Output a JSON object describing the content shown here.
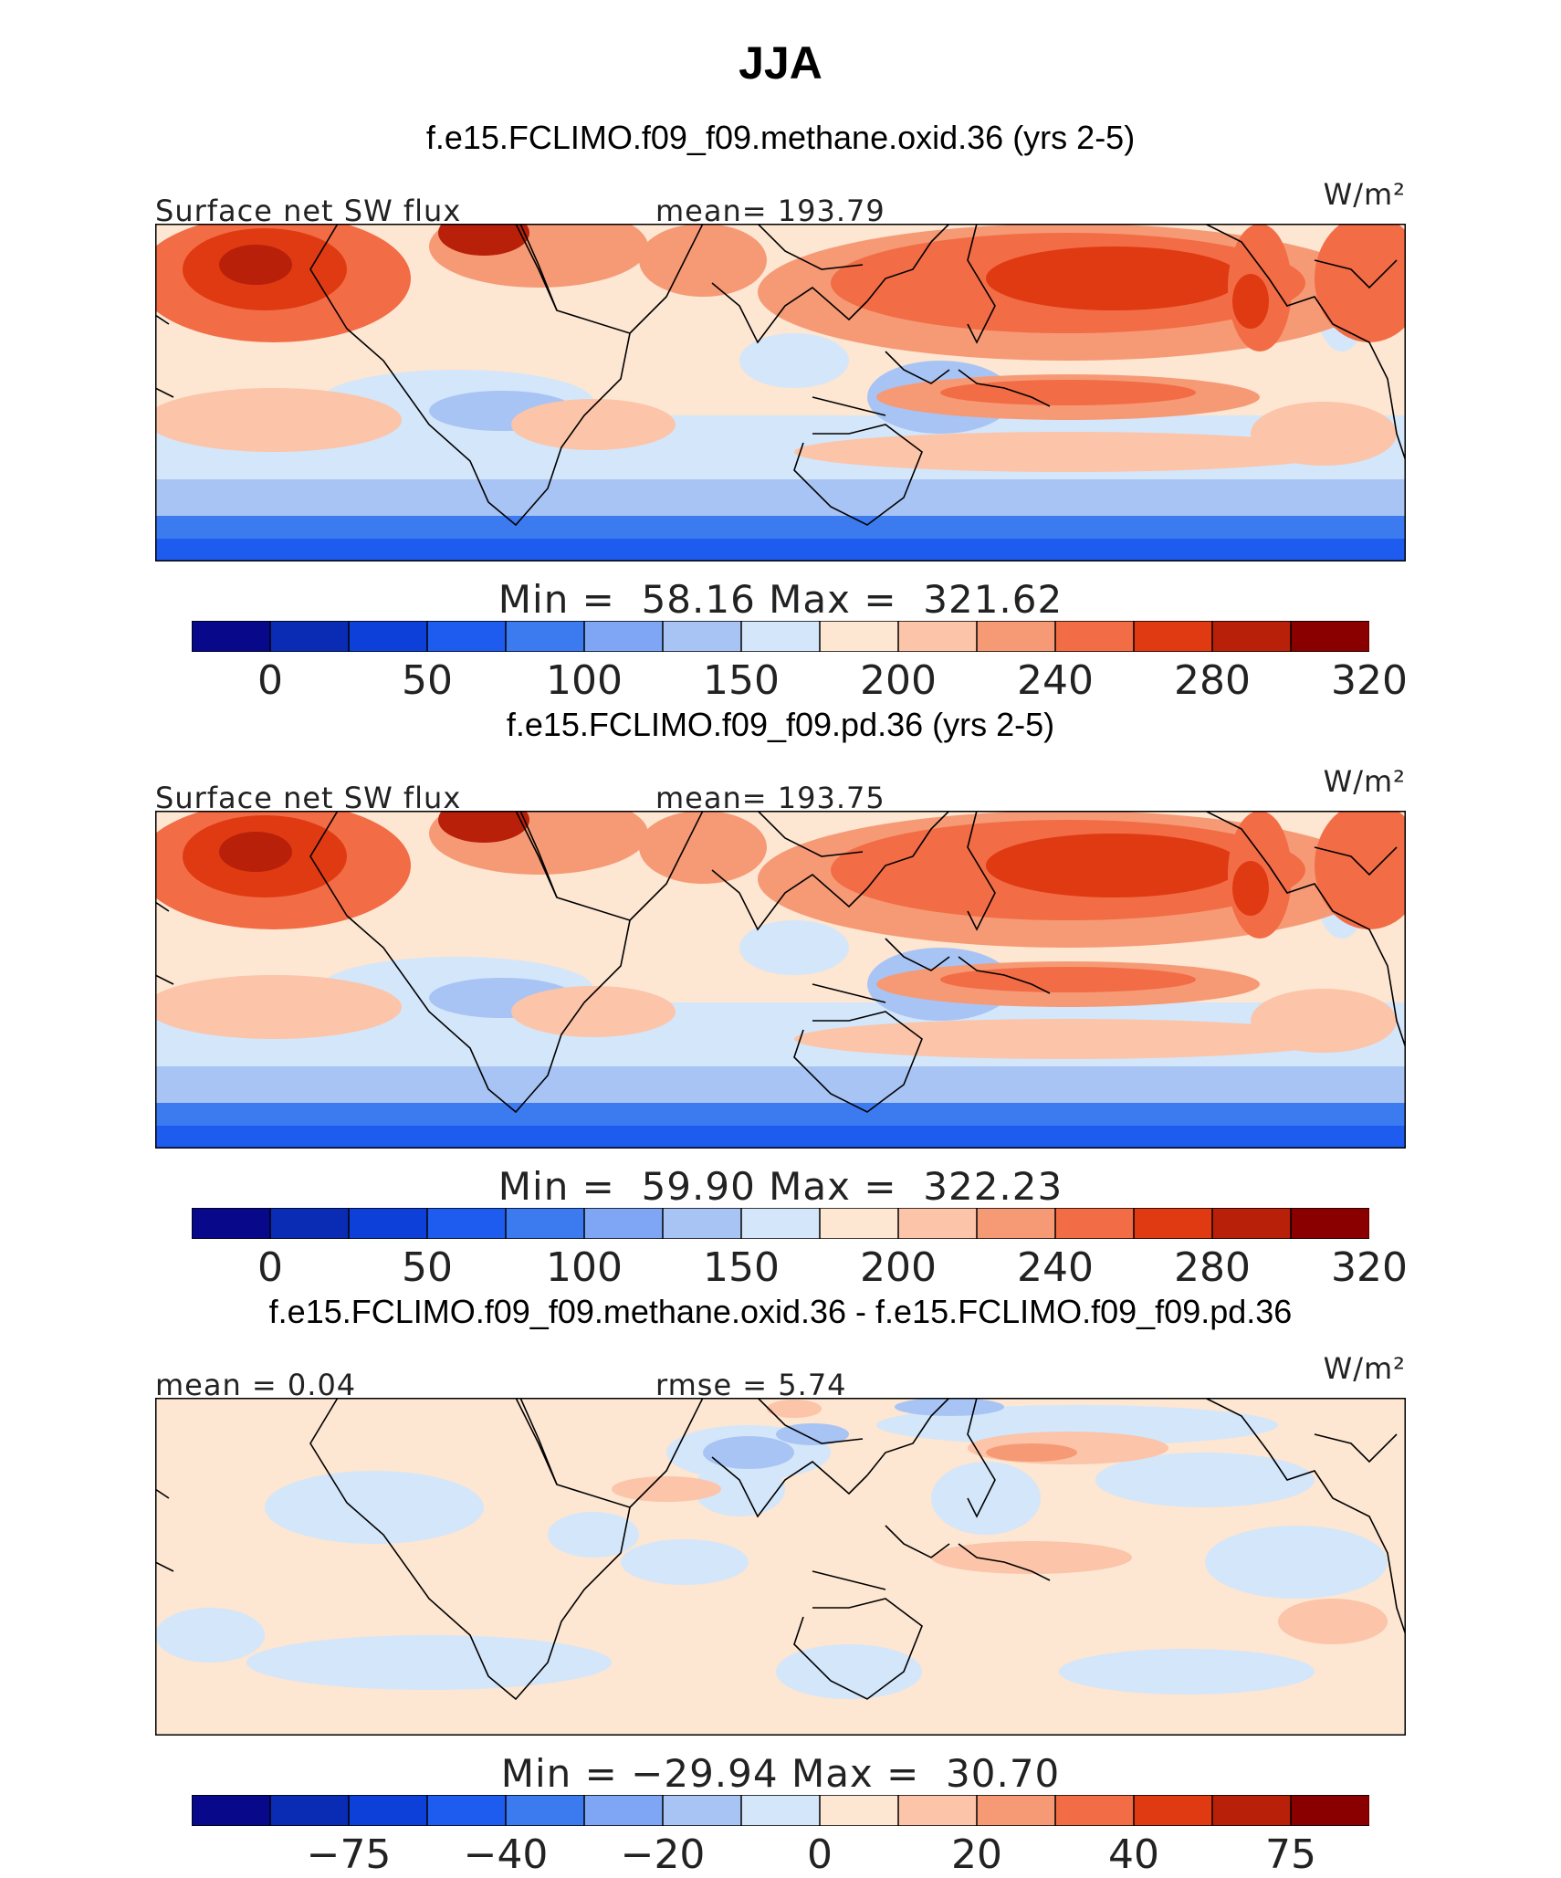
{
  "title": "JJA",
  "units": "W/m²",
  "panels": [
    {
      "case": "f.e15.FCLIMO.f09_f09.methane.oxid.36 (yrs 2-5)",
      "left_label": "Surface net SW flux",
      "mid_label": "mean= 193.79",
      "min_label": "Min =",
      "min_value": "58.16",
      "max_label": "Max =",
      "max_value": "321.62",
      "field": "absolute"
    },
    {
      "case": "f.e15.FCLIMO.f09_f09.pd.36 (yrs 2-5)",
      "left_label": "Surface net SW flux",
      "mid_label": "mean= 193.75",
      "min_label": "Min =",
      "min_value": "59.90",
      "max_label": "Max =",
      "max_value": "322.23",
      "field": "absolute"
    },
    {
      "case": "f.e15.FCLIMO.f09_f09.methane.oxid.36 - f.e15.FCLIMO.f09_f09.pd.36",
      "left_label": "mean =   0.04",
      "mid_label": "rmse =   5.74",
      "min_label": "Min =",
      "min_value": "−29.94",
      "max_label": "Max =",
      "max_value": "30.70",
      "field": "difference"
    }
  ],
  "colorbars": {
    "colors": [
      "#08088a",
      "#0a2cb4",
      "#0c40d8",
      "#1e5cf0",
      "#3c7af0",
      "#7ea6f4",
      "#a8c4f4",
      "#d4e6fa",
      "#fde6d2",
      "#fcc4a8",
      "#f69a76",
      "#f26c46",
      "#e03a12",
      "#b8200a",
      "#8a0000"
    ],
    "absolute_ticks": [
      {
        "label": "0",
        "index": 1
      },
      {
        "label": "50",
        "index": 3
      },
      {
        "label": "100",
        "index": 5
      },
      {
        "label": "150",
        "index": 7
      },
      {
        "label": "200",
        "index": 9
      },
      {
        "label": "240",
        "index": 11
      },
      {
        "label": "280",
        "index": 13
      },
      {
        "label": "320",
        "index": 15
      }
    ],
    "difference_ticks": [
      {
        "label": "−75",
        "index": 2
      },
      {
        "label": "−40",
        "index": 4
      },
      {
        "label": "−20",
        "index": 6
      },
      {
        "label": "0",
        "index": 8
      },
      {
        "label": "20",
        "index": 10
      },
      {
        "label": "40",
        "index": 12
      },
      {
        "label": "75",
        "index": 14
      }
    ]
  }
}
